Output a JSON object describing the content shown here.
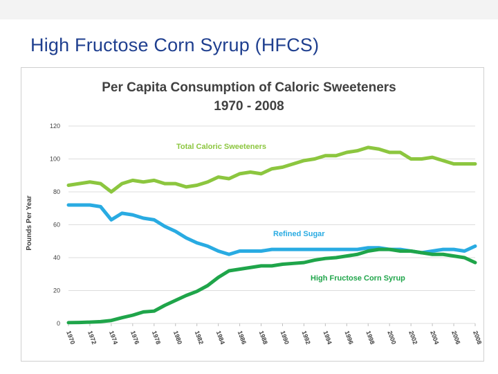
{
  "slide": {
    "title": "High Fructose Corn Syrup (HFCS)"
  },
  "chart_data": {
    "type": "line",
    "title": "Per Capita Consumption of Caloric Sweeteners",
    "subtitle": "1970 - 2008",
    "xlabel": "",
    "ylabel": "Pounds Per Year",
    "ylim": [
      0,
      120
    ],
    "yticks": [
      0,
      20,
      40,
      60,
      80,
      100,
      120
    ],
    "xticks": [
      "1970",
      "1972",
      "1974",
      "1976",
      "1978",
      "1980",
      "1982",
      "1984",
      "1986",
      "1988",
      "1990",
      "1992",
      "1994",
      "1996",
      "1998",
      "2000",
      "2002",
      "2004",
      "2006",
      "2008"
    ],
    "grid": true,
    "x": [
      1970,
      1971,
      1972,
      1973,
      1974,
      1975,
      1976,
      1977,
      1978,
      1979,
      1980,
      1981,
      1982,
      1983,
      1984,
      1985,
      1986,
      1987,
      1988,
      1989,
      1990,
      1991,
      1992,
      1993,
      1994,
      1995,
      1996,
      1997,
      1998,
      1999,
      2000,
      2001,
      2002,
      2003,
      2004,
      2005,
      2006,
      2007,
      2008
    ],
    "series": [
      {
        "name": "Total Caloric Sweeteners",
        "color": "#8cc63f",
        "values": [
          84,
          85,
          86,
          85,
          80,
          85,
          87,
          86,
          87,
          85,
          85,
          83,
          84,
          86,
          89,
          88,
          91,
          92,
          91,
          94,
          95,
          97,
          99,
          100,
          102,
          102,
          104,
          105,
          107,
          106,
          104,
          104,
          100,
          100,
          101,
          99,
          97,
          97,
          97
        ]
      },
      {
        "name": "Refined Sugar",
        "color": "#29abe2",
        "values": [
          72,
          72,
          72,
          71,
          63,
          67,
          66,
          64,
          63,
          59,
          56,
          52,
          49,
          47,
          44,
          42,
          44,
          44,
          44,
          45,
          45,
          45,
          45,
          45,
          45,
          45,
          45,
          45,
          46,
          46,
          45,
          45,
          44,
          43,
          44,
          45,
          45,
          44,
          47
        ]
      },
      {
        "name": "High Fructose Corn Syrup",
        "color": "#1fa54a",
        "values": [
          0.5,
          0.6,
          0.8,
          1.1,
          1.8,
          3.5,
          5,
          7,
          7.5,
          11,
          14,
          17,
          19.5,
          23,
          28,
          32,
          33,
          34,
          35,
          35,
          36,
          36.5,
          37,
          38.5,
          39.5,
          40,
          41,
          42,
          44,
          45,
          45,
          44,
          44,
          43,
          42,
          42,
          41,
          40,
          37
        ]
      }
    ],
    "annotations": [
      {
        "text": "Total Caloric Sweeteners",
        "series": "Total Caloric Sweeteners"
      },
      {
        "text": "Refined Sugar",
        "series": "Refined Sugar"
      },
      {
        "text": "High Fructose Corn Syrup",
        "series": "High Fructose Corn Syrup"
      }
    ]
  }
}
